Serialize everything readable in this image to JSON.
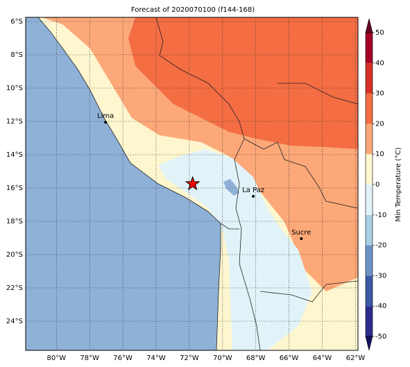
{
  "title": "Forecast of 2020070100 (f144-168)",
  "map": {
    "lonlim": [
      -81.85,
      -61.85
    ],
    "latlim": [
      -5.75,
      -25.75
    ],
    "xticks": [
      {
        "value": -80,
        "label": "80°W"
      },
      {
        "value": -78,
        "label": "78°W"
      },
      {
        "value": -76,
        "label": "76°W"
      },
      {
        "value": -74,
        "label": "74°W"
      },
      {
        "value": -72,
        "label": "72°W"
      },
      {
        "value": -70,
        "label": "70°W"
      },
      {
        "value": -68,
        "label": "68°W"
      },
      {
        "value": -66,
        "label": "66°W"
      },
      {
        "value": -64,
        "label": "64°W"
      },
      {
        "value": -62,
        "label": "62°W"
      }
    ],
    "yticks": [
      {
        "value": -6,
        "label": "6°S"
      },
      {
        "value": -8,
        "label": "8°S"
      },
      {
        "value": -10,
        "label": "10°S"
      },
      {
        "value": -12,
        "label": "12°S"
      },
      {
        "value": -14,
        "label": "14°S"
      },
      {
        "value": -16,
        "label": "16°S"
      },
      {
        "value": -18,
        "label": "18°S"
      },
      {
        "value": -20,
        "label": "20°S"
      },
      {
        "value": -22,
        "label": "22°S"
      },
      {
        "value": -24,
        "label": "24°S"
      }
    ],
    "grid": true,
    "cities": [
      {
        "name": "Lima",
        "lon": -77.04,
        "lat": -12.05
      },
      {
        "name": "La Paz",
        "lon": -68.15,
        "lat": -16.5
      },
      {
        "name": "Sucre",
        "lon": -65.26,
        "lat": -19.04
      }
    ],
    "star": {
      "lon": -71.8,
      "lat": -15.75,
      "color": "#ff0000"
    }
  },
  "colorbar": {
    "label": "Min Temperature (°C)",
    "lim": [
      -50,
      50
    ],
    "ticks": [
      -50,
      -40,
      -30,
      -20,
      -10,
      0,
      10,
      20,
      30,
      40,
      50
    ],
    "colors": [
      "#2c2c8c",
      "#3c5aa6",
      "#6a93c4",
      "#a9cfe5",
      "#e1f3f8",
      "#fef6cf",
      "#fca878",
      "#f46d43",
      "#d73027",
      "#a50026"
    ],
    "under_color": "#131362",
    "over_color": "#67001f"
  }
}
